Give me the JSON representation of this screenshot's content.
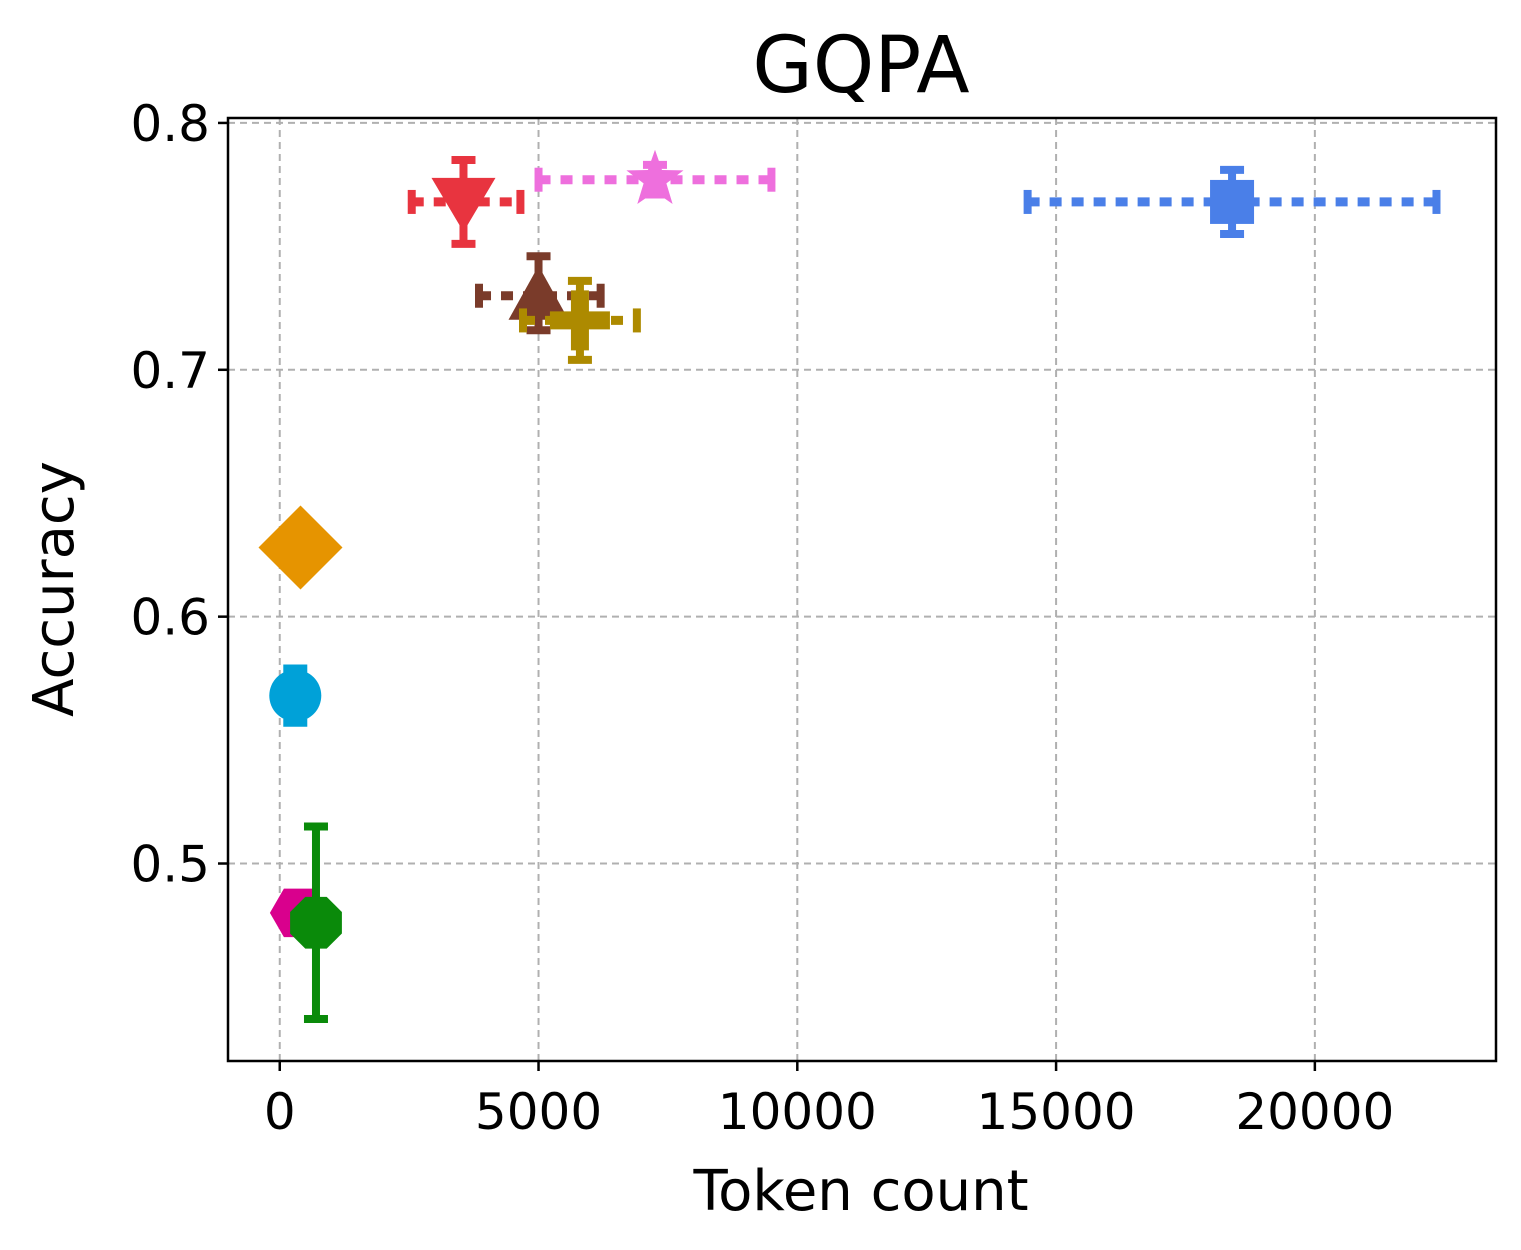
{
  "chart_data": {
    "type": "scatter",
    "title": "GQPA",
    "xlabel": "Token count",
    "ylabel": "Accuracy",
    "xlim": [
      -1000,
      23500
    ],
    "ylim": [
      0.42,
      0.802
    ],
    "xticks": [
      0,
      5000,
      10000,
      15000,
      20000
    ],
    "xtick_labels": [
      "0",
      "5000",
      "10000",
      "15000",
      "20000"
    ],
    "yticks": [
      0.5,
      0.6,
      0.7,
      0.8
    ],
    "ytick_labels": [
      "0.5",
      "0.6",
      "0.7",
      "0.8"
    ],
    "grid": true,
    "series": [
      {
        "name": "blue-square",
        "marker": "square",
        "color": "#4a7fe8",
        "x": 18400,
        "y": 0.768,
        "xerr": [
          14450,
          22350
        ],
        "yerr": [
          0.755,
          0.781
        ]
      },
      {
        "name": "pink-star",
        "marker": "star",
        "color": "#ee6fdd",
        "x": 7250,
        "y": 0.777,
        "xerr": [
          5000,
          9500
        ],
        "yerr": [
          0.771,
          0.783
        ]
      },
      {
        "name": "red-triangle-down",
        "marker": "triangle-down",
        "color": "#e8343f",
        "x": 3550,
        "y": 0.768,
        "xerr": [
          2550,
          4650
        ],
        "yerr": [
          0.751,
          0.785
        ]
      },
      {
        "name": "brown-triangle-up",
        "marker": "triangle-up",
        "color": "#7a3b2a",
        "x": 5000,
        "y": 0.73,
        "xerr": [
          3850,
          6200
        ],
        "yerr": [
          0.716,
          0.746
        ]
      },
      {
        "name": "olive-plus",
        "marker": "plus",
        "color": "#ad8a00",
        "x": 5800,
        "y": 0.72,
        "xerr": [
          4700,
          6900
        ],
        "yerr": [
          0.704,
          0.736
        ]
      },
      {
        "name": "orange-diamond",
        "marker": "diamond",
        "color": "#e69400",
        "x": 400,
        "y": 0.628,
        "xerr": null,
        "yerr": null
      },
      {
        "name": "cyan-circle",
        "marker": "circle",
        "color": "#00a1d8",
        "x": 300,
        "y": 0.568,
        "xerr": null,
        "yerr": [
          0.557,
          0.579
        ]
      },
      {
        "name": "magenta-hexagon",
        "marker": "hexagon",
        "color": "#d9008d",
        "x": 350,
        "y": 0.48,
        "xerr": null,
        "yerr": null
      },
      {
        "name": "green-octagon",
        "marker": "octagon",
        "color": "#0a8a0a",
        "x": 700,
        "y": 0.476,
        "xerr": null,
        "yerr": [
          0.437,
          0.515
        ]
      }
    ]
  }
}
